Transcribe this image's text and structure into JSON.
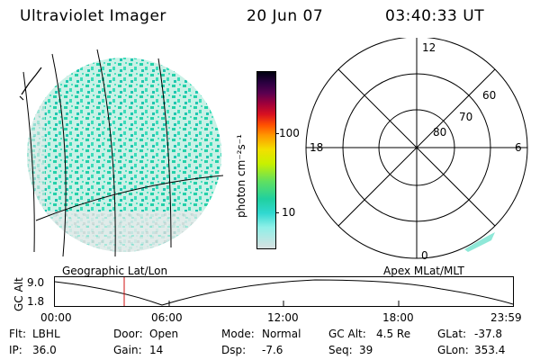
{
  "header": {
    "instrument": "Ultraviolet Imager",
    "date": "20 Jun 07",
    "time": "03:40:33 UT"
  },
  "colorbar": {
    "unit_label": "photon cm⁻²s⁻¹",
    "ticks": [
      "100",
      "10"
    ]
  },
  "polar_plot": {
    "mlt_labels": {
      "top": "12",
      "left": "18",
      "right": "6",
      "bottom": "0"
    },
    "lat_labels": [
      "60",
      "70",
      "80"
    ]
  },
  "labels": {
    "geo": "Geographic Lat/Lon",
    "apex": "Apex MLat/MLT"
  },
  "altitude_plot": {
    "ylabel": "GC Alt",
    "yticks": [
      "9.0",
      "1.8"
    ],
    "xticks": [
      "00:00",
      "06:00",
      "12:00",
      "18:00",
      "23:59"
    ]
  },
  "footer": {
    "row1": [
      {
        "k": "Flt:",
        "v": "LBHL"
      },
      {
        "k": "Door:",
        "v": "Open"
      },
      {
        "k": "Mode:",
        "v": "Normal"
      },
      {
        "k": "GC Alt:",
        "v": "4.5 Re"
      },
      {
        "k": "GLat:",
        "v": "-37.8"
      }
    ],
    "row2": [
      {
        "k": "IP:",
        "v": "36.0"
      },
      {
        "k": "Gain:",
        "v": "14"
      },
      {
        "k": "Dsp:",
        "v": "-7.6"
      },
      {
        "k": "Seq:",
        "v": "39"
      },
      {
        "k": "GLon:",
        "v": "353.4"
      }
    ]
  },
  "colors": {
    "marker": "#d01010",
    "aurora": "#2fd4b4",
    "background_noise": "#d7dedd"
  }
}
